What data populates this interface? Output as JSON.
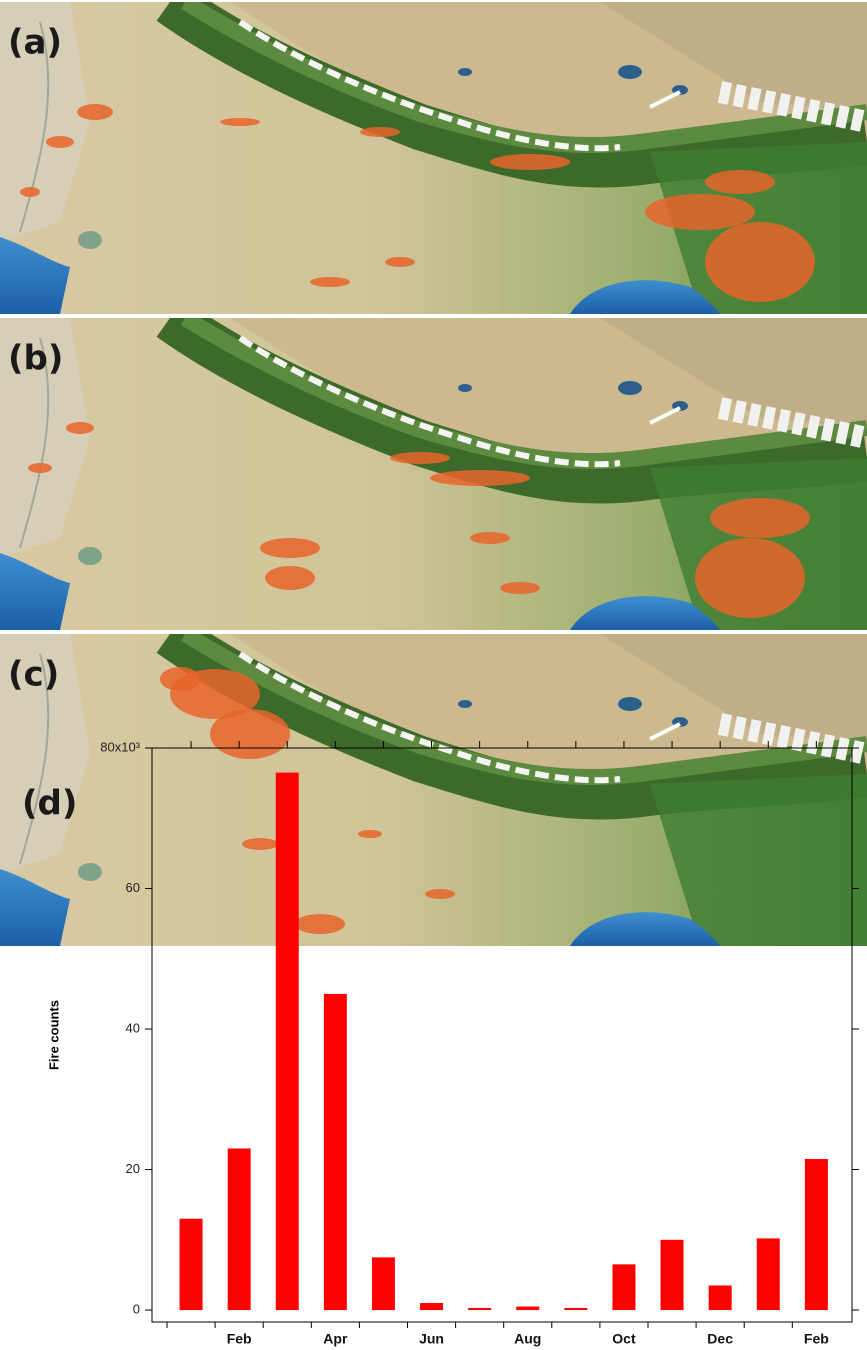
{
  "panels": [
    {
      "label": "(a)"
    },
    {
      "label": "(b)"
    },
    {
      "label": "(c)"
    }
  ],
  "chart_data": {
    "type": "bar",
    "label": "(d)",
    "y_label": "Fire counts",
    "categories": [
      null,
      "Feb",
      null,
      "Apr",
      null,
      "Jun",
      null,
      "Aug",
      null,
      "Oct",
      null,
      "Dec",
      null,
      "Feb"
    ],
    "values": [
      13,
      23,
      76.5,
      45,
      7.5,
      1,
      0.3,
      0.5,
      0.3,
      6.5,
      10,
      3.5,
      10.2,
      21.5
    ],
    "color": "#ff0000",
    "ylim": [
      -1.7,
      80
    ],
    "yticks": [
      0,
      20,
      40,
      60,
      {
        "value": 80,
        "label": "80x10³"
      }
    ]
  }
}
